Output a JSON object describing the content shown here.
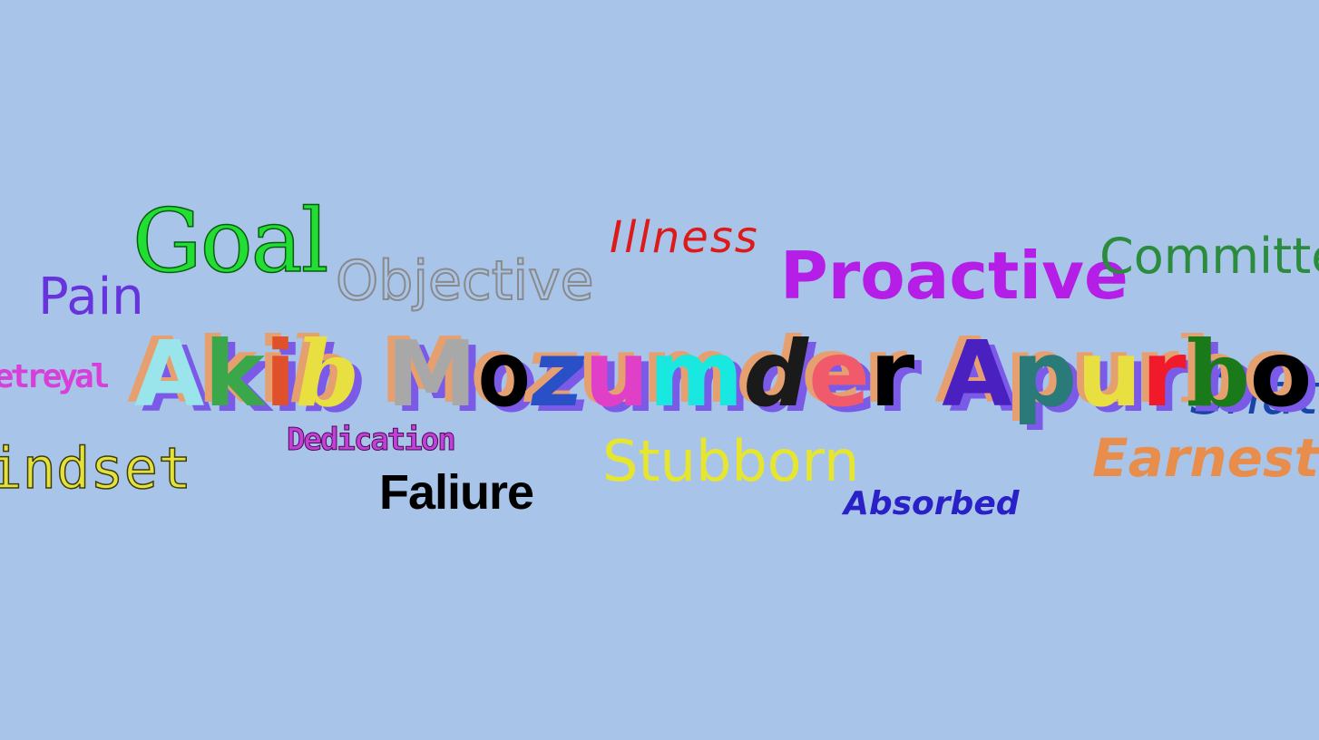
{
  "words": {
    "goal": "Goal",
    "pain": "Pain",
    "objective": "Objective",
    "illness": "Illness",
    "proactive": "Proactive",
    "committed": "Committed",
    "betreyal": "Betreyal",
    "shattered": "Shattered",
    "mindset": "Mindset",
    "dedication": "Dedication",
    "faliure": "Faliure",
    "stubborn": "Stubborn",
    "absorbed": "Absorbed",
    "earnest": "Earnest"
  },
  "name": {
    "text": "Akib Mozumder Apurbo",
    "letters": [
      {
        "ch": "A",
        "color": "#9ae4ec",
        "font": "sans"
      },
      {
        "ch": "k",
        "color": "#3aa84a",
        "font": "sans"
      },
      {
        "ch": "i",
        "color": "#e0502a",
        "font": "sans"
      },
      {
        "ch": "b",
        "color": "#e8e040",
        "font": "serif-italic"
      },
      {
        "ch": " ",
        "color": "",
        "font": "gap"
      },
      {
        "ch": "M",
        "color": "#a8a8a8",
        "font": "sans"
      },
      {
        "ch": "o",
        "color": "#000000",
        "font": "mono"
      },
      {
        "ch": "z",
        "color": "#2a50c8",
        "font": "sans-italic"
      },
      {
        "ch": "u",
        "color": "#e040c8",
        "font": "sans"
      },
      {
        "ch": "m",
        "color": "#18e8e0",
        "font": "sans"
      },
      {
        "ch": "d",
        "color": "#1a1a1a",
        "font": "sans-italic"
      },
      {
        "ch": "e",
        "color": "#f05a6a",
        "font": "sans"
      },
      {
        "ch": "r",
        "color": "#000000",
        "font": "sans"
      },
      {
        "ch": " ",
        "color": "",
        "font": "gap"
      },
      {
        "ch": "A",
        "color": "#4a20c0",
        "font": "sans"
      },
      {
        "ch": "p",
        "color": "#2a7a7a",
        "font": "sans"
      },
      {
        "ch": "u",
        "color": "#e8e040",
        "font": "sans"
      },
      {
        "ch": "r",
        "color": "#f01a2a",
        "font": "sans"
      },
      {
        "ch": "b",
        "color": "#1a7a1a",
        "font": "serif"
      },
      {
        "ch": "o",
        "color": "#000000",
        "font": "sans"
      }
    ],
    "shadow_colors": [
      "#e6a070",
      "#7a5ae6"
    ]
  }
}
